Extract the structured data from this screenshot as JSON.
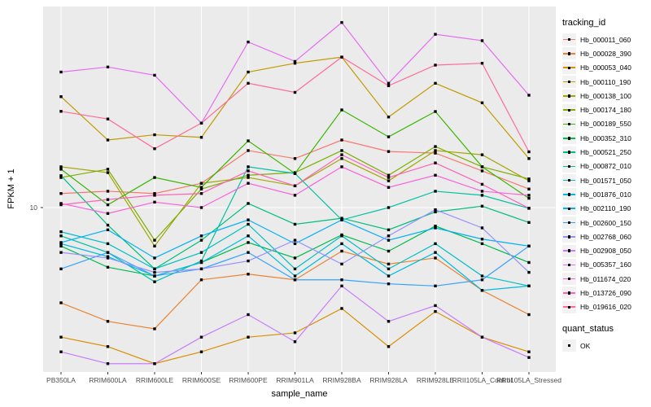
{
  "chart_data": {
    "type": "line",
    "title": "",
    "xlabel": "sample_name",
    "ylabel": "FPKM + 1",
    "y_scale": "log10",
    "y_tick_labels": [
      "10"
    ],
    "ylim": [
      1,
      170
    ],
    "grid": "major-white-on-gray",
    "legend_position": "right",
    "legend_title": "tracking_id",
    "quant_legend_title": "quant_status",
    "quant_legend_items": [
      {
        "label": "OK",
        "marker": "black-square"
      }
    ],
    "point_marker": "black-square",
    "categories": [
      "PB350LA",
      "RRIM600LA",
      "RRIM600LE",
      "RRIM600SE",
      "RRIM600PE",
      "RRIM901LA",
      "RRIM928BA",
      "RRIM928LA",
      "RRIM928LE",
      "RRII105LA_Control",
      "RRII105LA_Stressed"
    ],
    "series": [
      {
        "name": "Hb_000011_060",
        "color": "#F8766D",
        "values": [
          12.2,
          12.6,
          12.2,
          14.1,
          22.4,
          20.0,
          26.0,
          22.1,
          21.6,
          16.8,
          13.0
        ]
      },
      {
        "name": "Hb_000028_390",
        "color": "#EA8331",
        "values": [
          2.6,
          2.0,
          1.8,
          3.6,
          3.9,
          3.6,
          5.4,
          4.5,
          4.9,
          3.1,
          2.2
        ]
      },
      {
        "name": "Hb_000053_040",
        "color": "#D89000",
        "values": [
          1.6,
          1.4,
          1.1,
          1.3,
          1.6,
          1.7,
          2.4,
          1.4,
          2.3,
          1.6,
          1.3
        ]
      },
      {
        "name": "Hb_000110_190",
        "color": "#C09B00",
        "values": [
          48.0,
          26.0,
          28.0,
          27.0,
          68.0,
          77.0,
          84.0,
          36.0,
          58.0,
          44.0,
          20.0
        ]
      },
      {
        "name": "Hb_000138_100",
        "color": "#A3A500",
        "values": [
          17.8,
          16.4,
          5.8,
          14.1,
          15.3,
          13.6,
          20.0,
          14.6,
          22.4,
          21.1,
          14.6
        ]
      },
      {
        "name": "Hb_000174_180",
        "color": "#7CAE00",
        "values": [
          15.3,
          17.2,
          6.3,
          13.0,
          15.8,
          16.4,
          22.4,
          15.8,
          23.7,
          17.8,
          15.0
        ]
      },
      {
        "name": "Hb_000189_550",
        "color": "#39B600",
        "values": [
          17.2,
          10.4,
          15.3,
          13.3,
          25.7,
          16.2,
          39.8,
          27.2,
          38.9,
          17.8,
          11.4
        ]
      },
      {
        "name": "Hb_000352_310",
        "color": "#00BB4E",
        "values": [
          5.8,
          4.3,
          3.8,
          4.6,
          6.1,
          4.9,
          6.8,
          5.4,
          7.7,
          6.0,
          4.6
        ]
      },
      {
        "name": "Hb_000521_250",
        "color": "#00BF7D",
        "values": [
          15.7,
          7.8,
          4.2,
          6.3,
          10.6,
          7.9,
          8.6,
          7.3,
          9.4,
          10.2,
          8.1
        ]
      },
      {
        "name": "Hb_000872_010",
        "color": "#00C1A3",
        "values": [
          6.7,
          5.3,
          3.5,
          4.7,
          17.8,
          16.2,
          8.4,
          10.0,
          12.6,
          11.9,
          9.9
        ]
      },
      {
        "name": "Hb_001571_050",
        "color": "#00BFC4",
        "values": [
          7.1,
          6.0,
          4.2,
          5.3,
          7.9,
          4.2,
          6.7,
          4.2,
          6.0,
          3.8,
          3.3
        ]
      },
      {
        "name": "Hb_001876_010",
        "color": "#00BAE0",
        "values": [
          6.0,
          5.0,
          3.8,
          4.6,
          6.7,
          3.8,
          6.0,
          3.8,
          5.3,
          3.1,
          3.3
        ]
      },
      {
        "name": "Hb_002110_190",
        "color": "#00B0F6",
        "values": [
          6.1,
          7.3,
          4.9,
          6.7,
          8.4,
          6.0,
          8.4,
          6.3,
          7.5,
          6.4,
          5.8
        ]
      },
      {
        "name": "Hb_002600_150",
        "color": "#35A2FF",
        "values": [
          4.2,
          5.3,
          3.8,
          4.2,
          5.3,
          3.6,
          3.6,
          3.4,
          3.3,
          3.6,
          5.8
        ]
      },
      {
        "name": "Hb_002768_060",
        "color": "#9590FF",
        "values": [
          5.3,
          4.9,
          4.0,
          4.2,
          4.7,
          6.3,
          4.5,
          6.7,
          9.7,
          7.5,
          4.0
        ]
      },
      {
        "name": "Hb_002908_050",
        "color": "#C77CFF",
        "values": [
          1.3,
          1.1,
          1.1,
          1.6,
          2.2,
          1.5,
          3.3,
          2.0,
          2.5,
          1.6,
          1.2
        ]
      },
      {
        "name": "Hb_005357_160",
        "color": "#E76BF3",
        "values": [
          68.0,
          73.0,
          65.0,
          33.0,
          104.0,
          79.0,
          137.0,
          58.0,
          116.0,
          106.0,
          49.0
        ]
      },
      {
        "name": "Hb_011674_020",
        "color": "#FA62DB",
        "values": [
          10.6,
          9.2,
          10.8,
          10.0,
          14.1,
          11.9,
          17.8,
          13.3,
          15.8,
          12.6,
          11.9
        ]
      },
      {
        "name": "Hb_013726_090",
        "color": "#FF62BC",
        "values": [
          10.4,
          11.2,
          11.9,
          12.2,
          16.8,
          13.6,
          21.1,
          15.3,
          18.8,
          13.9,
          9.9
        ]
      },
      {
        "name": "Hb_019616_020",
        "color": "#FF6A98",
        "values": [
          39.0,
          35.0,
          23.0,
          33.0,
          58.0,
          51.0,
          84.0,
          56.0,
          75.0,
          77.0,
          22.0
        ]
      }
    ]
  },
  "colors": {
    "panel_bg": "#EBEBEB",
    "grid": "#FFFFFF",
    "legend_key_bg": "#F2F2F2",
    "point": "#000000",
    "tick_text": "#4D4D4D",
    "tick_mark": "#333333"
  }
}
